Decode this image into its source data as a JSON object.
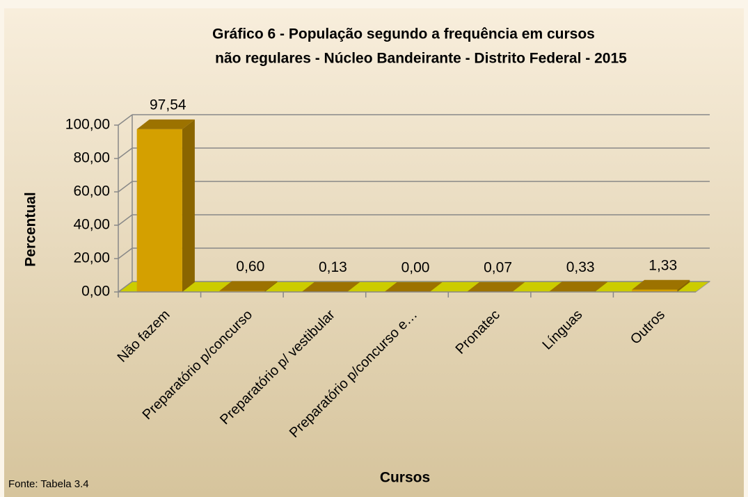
{
  "chart_data": {
    "type": "bar3d",
    "title": [
      "Gráfico 6 - População segundo a frequência em cursos",
      "não regulares - Núcleo Bandeirante - Distrito Federal - 2015"
    ],
    "x_label": "Cursos",
    "y_label": "Percentual",
    "source": "Fonte: Tabela 3.4",
    "categories": [
      "Não fazem",
      "Preparatório p/concurso",
      "Preparatório p/ vestibular",
      "Preparatório p/concurso e…",
      "Pronatec",
      "Línguas",
      "Outros"
    ],
    "values": [
      97.54,
      0.6,
      0.13,
      0.0,
      0.07,
      0.33,
      1.33
    ],
    "value_labels": [
      "97,54",
      "0,60",
      "0,13",
      "0,00",
      "0,07",
      "0,33",
      "1,33"
    ],
    "color": "#d4a000",
    "ylim": [
      0,
      100
    ],
    "yticks": [
      {
        "value": 0,
        "label": "0,00"
      },
      {
        "value": 20,
        "label": "20,00"
      },
      {
        "value": 40,
        "label": "40,00"
      },
      {
        "value": 60,
        "label": "60,00"
      },
      {
        "value": 80,
        "label": "80,00"
      },
      {
        "value": 100,
        "label": "100,00"
      }
    ],
    "grid": true
  }
}
